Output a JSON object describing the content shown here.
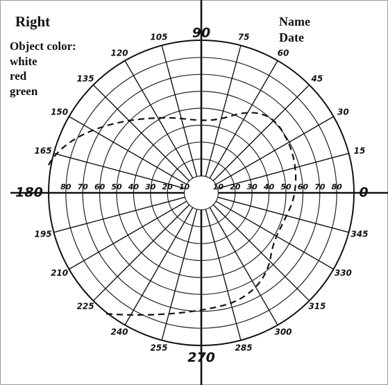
{
  "header": {
    "eye": "Right",
    "object_color_label": "Object color:",
    "colors": [
      "white",
      "red",
      "green"
    ],
    "name_label": "Name",
    "date_label": "Date"
  },
  "meridians": [
    0,
    15,
    30,
    45,
    60,
    75,
    90,
    105,
    120,
    135,
    150,
    165,
    180,
    195,
    210,
    225,
    240,
    255,
    270,
    285,
    300,
    315,
    330,
    345
  ],
  "ring_labels": [
    10,
    20,
    30,
    40,
    50,
    60,
    70,
    80
  ]
}
